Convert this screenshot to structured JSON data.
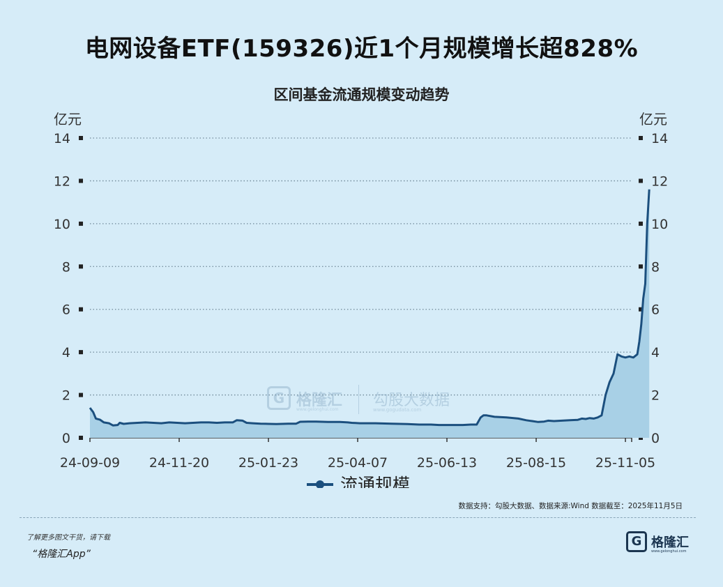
{
  "header": {
    "title": "电网设备ETF(159326)近1个月规模增长超828%"
  },
  "chart_data": {
    "type": "area",
    "title": "区间基金流通规模变动趋势",
    "ylabel": "亿元",
    "ylabel_right": "亿元",
    "ylim": [
      0,
      14
    ],
    "yticks": [
      "0",
      "2",
      "4",
      "6",
      "8",
      "10",
      "12",
      "14"
    ],
    "xticks": [
      "24-09-09",
      "24-11-20",
      "25-01-23",
      "25-04-07",
      "25-06-13",
      "25-08-15",
      "25-11-05"
    ],
    "grid": true,
    "legend_position": "bottom",
    "series": [
      {
        "name": "流通规模",
        "color": "#1b4f7e",
        "fill": "#a8d0e6",
        "points": [
          [
            0,
            1.4
          ],
          [
            0.008,
            1.2
          ],
          [
            0.015,
            0.9
          ],
          [
            0.025,
            0.85
          ],
          [
            0.035,
            0.72
          ],
          [
            0.048,
            0.68
          ],
          [
            0.058,
            0.58
          ],
          [
            0.07,
            0.6
          ],
          [
            0.075,
            0.7
          ],
          [
            0.085,
            0.65
          ],
          [
            0.1,
            0.68
          ],
          [
            0.12,
            0.7
          ],
          [
            0.14,
            0.72
          ],
          [
            0.16,
            0.7
          ],
          [
            0.18,
            0.68
          ],
          [
            0.2,
            0.72
          ],
          [
            0.22,
            0.7
          ],
          [
            0.24,
            0.68
          ],
          [
            0.26,
            0.7
          ],
          [
            0.28,
            0.72
          ],
          [
            0.3,
            0.72
          ],
          [
            0.32,
            0.7
          ],
          [
            0.34,
            0.72
          ],
          [
            0.36,
            0.72
          ],
          [
            0.37,
            0.82
          ],
          [
            0.385,
            0.8
          ],
          [
            0.395,
            0.7
          ],
          [
            0.41,
            0.68
          ],
          [
            0.43,
            0.66
          ],
          [
            0.45,
            0.65
          ],
          [
            0.47,
            0.64
          ],
          [
            0.5,
            0.66
          ],
          [
            0.52,
            0.66
          ],
          [
            0.53,
            0.75
          ],
          [
            0.55,
            0.76
          ],
          [
            0.57,
            0.76
          ],
          [
            0.6,
            0.74
          ],
          [
            0.63,
            0.74
          ],
          [
            0.65,
            0.72
          ],
          [
            0.66,
            0.7
          ],
          [
            0.68,
            0.68
          ],
          [
            0.72,
            0.68
          ],
          [
            0.76,
            0.66
          ],
          [
            0.8,
            0.64
          ],
          [
            0.83,
            0.62
          ],
          [
            0.86,
            0.62
          ],
          [
            0.88,
            0.6
          ],
          [
            0.9,
            0.6
          ],
          [
            0.92,
            0.6
          ],
          [
            0.94,
            0.6
          ],
          [
            0.96,
            0.62
          ],
          [
            0.975,
            0.62
          ],
          [
            0.985,
            0.95
          ],
          [
            0.992,
            1.05
          ],
          [
            1.0,
            1.05
          ],
          [
            1.02,
            0.98
          ],
          [
            1.05,
            0.95
          ],
          [
            1.08,
            0.9
          ],
          [
            1.1,
            0.82
          ],
          [
            1.115,
            0.78
          ],
          [
            1.13,
            0.74
          ],
          [
            1.145,
            0.76
          ],
          [
            1.155,
            0.8
          ],
          [
            1.17,
            0.78
          ],
          [
            1.19,
            0.8
          ],
          [
            1.21,
            0.82
          ],
          [
            1.23,
            0.84
          ],
          [
            1.24,
            0.9
          ],
          [
            1.25,
            0.88
          ],
          [
            1.26,
            0.92
          ],
          [
            1.27,
            0.9
          ],
          [
            1.28,
            0.95
          ],
          [
            1.29,
            1.05
          ],
          [
            1.3,
            2.0
          ],
          [
            1.31,
            2.6
          ],
          [
            1.32,
            3.0
          ],
          [
            1.33,
            3.9
          ],
          [
            1.34,
            3.8
          ],
          [
            1.35,
            3.75
          ],
          [
            1.36,
            3.8
          ],
          [
            1.37,
            3.75
          ],
          [
            1.38,
            3.9
          ],
          [
            1.385,
            4.5
          ],
          [
            1.39,
            5.3
          ],
          [
            1.395,
            6.5
          ],
          [
            1.4,
            7.2
          ],
          [
            1.405,
            10.0
          ],
          [
            1.41,
            11.6
          ]
        ]
      }
    ]
  },
  "watermark": {
    "brand": "格隆汇",
    "brand_url": "www.gelonghui.com",
    "partner": "勾股大数据",
    "partner_url": "www.gogudata.com"
  },
  "source": "数据支持：勾股大数据、数据来源:Wind  数据截至：2025年11月5日",
  "footer": {
    "promo_line1": "了解更多图文干货，请下载",
    "promo_line2": "“格隆汇App”",
    "brand": "格隆汇",
    "brand_url": "www.gelonghui.com"
  }
}
